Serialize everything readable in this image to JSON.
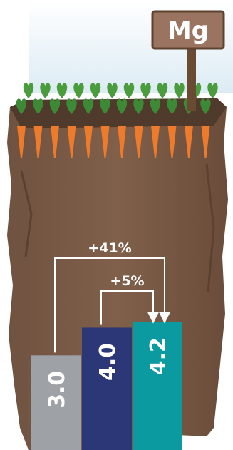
{
  "sign": {
    "label": "Mg"
  },
  "chart_data": {
    "type": "bar",
    "categories": [
      "",
      "",
      ""
    ],
    "values": [
      3.0,
      4.0,
      4.2
    ],
    "value_labels": [
      "3.0",
      "4.0",
      "4.2"
    ],
    "bar_colors": [
      "#9ea2a6",
      "#2c3777",
      "#0b9aa0"
    ],
    "ylim": [
      0,
      4.5
    ],
    "grid": false,
    "legend": "none",
    "annotations": [
      {
        "from_bar": 0,
        "to_bar": 2,
        "text": "+41%"
      },
      {
        "from_bar": 1,
        "to_bar": 2,
        "text": "+5%"
      }
    ]
  },
  "colors": {
    "sky": "#e6f3fa",
    "soil": "#7b5a44",
    "soil_dark": "#5c4030",
    "carrot": "#ee7a2b",
    "leaf": "#3c8a35",
    "sign_board": "#9a7461",
    "sign_text": "#ffffff"
  }
}
